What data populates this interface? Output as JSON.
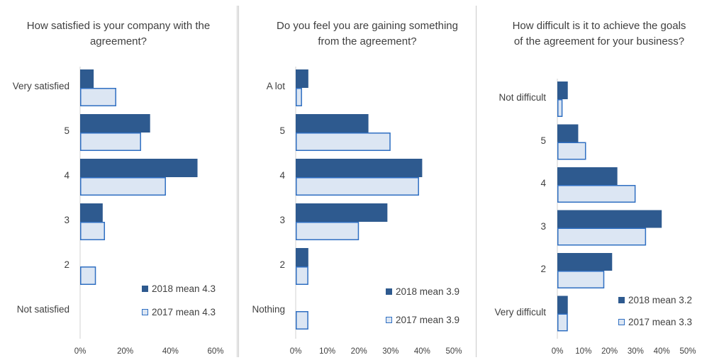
{
  "colors": {
    "s2018_fill": "#2E5A8F",
    "s2017_fill": "#DCE6F3",
    "s2017_stroke": "#2F6FC2",
    "axis": "#d0d0d0",
    "text": "#404040"
  },
  "chart_data": [
    {
      "type": "bar",
      "orientation": "horizontal",
      "title": "How satisfied is your company with the agreement?",
      "categories": [
        "Very satisfied",
        "5",
        "4",
        "3",
        "2",
        "Not satisfied"
      ],
      "series": [
        {
          "name": "2018 mean 4.3",
          "values": [
            6,
            31,
            52,
            10,
            0,
            0
          ]
        },
        {
          "name": "2017 mean 4.3",
          "values": [
            16,
            27,
            38,
            11,
            7,
            0
          ]
        }
      ],
      "xlim": [
        0,
        60
      ],
      "xticks": [
        "0%",
        "20%",
        "40%",
        "60%"
      ],
      "legend": "bottom-right"
    },
    {
      "type": "bar",
      "orientation": "horizontal",
      "title": "Do you feel you are gaining something from the agreement?",
      "categories": [
        "A lot",
        "5",
        "4",
        "3",
        "2",
        "Nothing"
      ],
      "series": [
        {
          "name": "2018 mean 3.9",
          "values": [
            4,
            23,
            40,
            29,
            4,
            0
          ]
        },
        {
          "name": "2017 mean 3.9",
          "values": [
            2,
            30,
            39,
            20,
            4,
            4
          ]
        }
      ],
      "xlim": [
        0,
        50
      ],
      "xticks": [
        "0%",
        "10%",
        "20%",
        "30%",
        "40%",
        "50%"
      ],
      "legend": "bottom-right"
    },
    {
      "type": "bar",
      "orientation": "horizontal",
      "title": "How difficult is it to achieve the goals of the agreement for your business?",
      "categories": [
        "Not difficult",
        "5",
        "4",
        "3",
        "2",
        "Very difficult"
      ],
      "series": [
        {
          "name": "2018 mean 3.2",
          "values": [
            4,
            8,
            23,
            40,
            21,
            4
          ]
        },
        {
          "name": "2017 mean 3.3",
          "values": [
            2,
            11,
            30,
            34,
            18,
            4
          ]
        }
      ],
      "xlim": [
        0,
        50
      ],
      "xticks": [
        "0%",
        "10%",
        "20%",
        "30%",
        "40%",
        "50%"
      ],
      "legend": "bottom-right"
    }
  ]
}
